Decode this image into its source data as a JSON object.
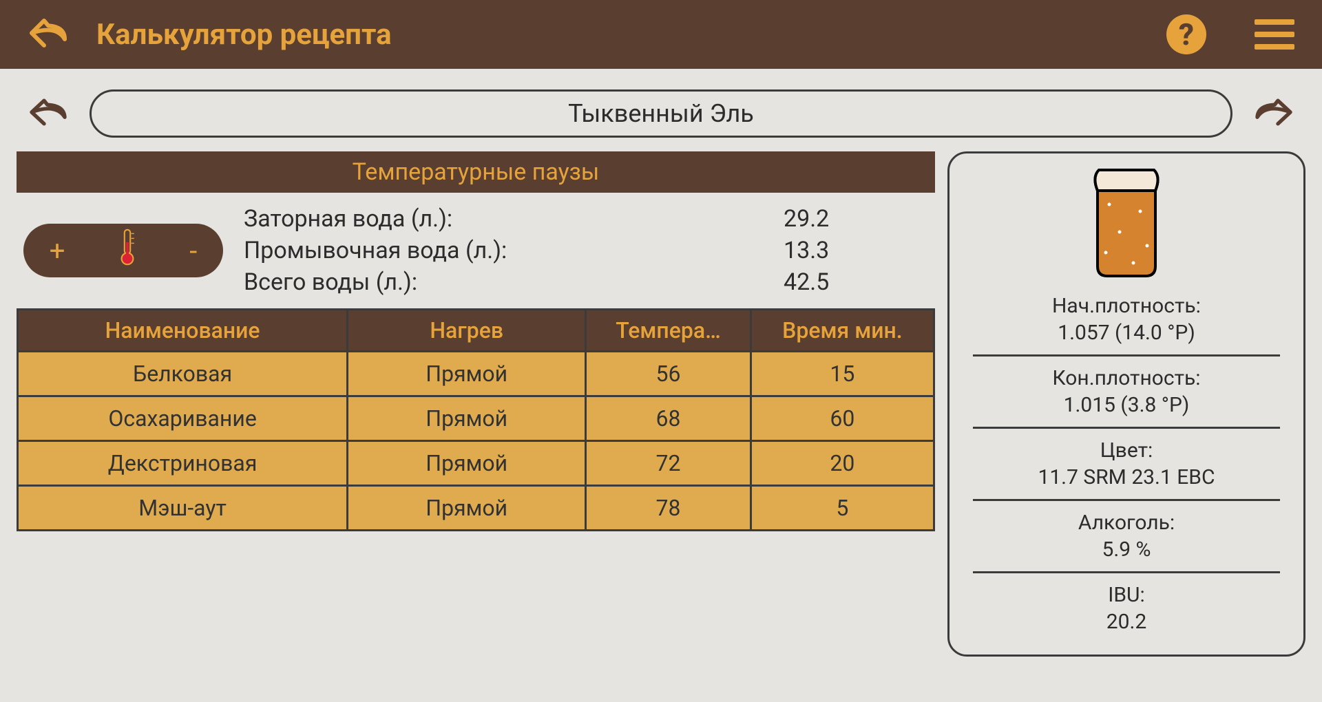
{
  "colors": {
    "header_bg": "#5a3f30",
    "accent": "#e6a33c",
    "page_bg": "#e5e4e0",
    "row_bg": "#e0aa4f",
    "border": "#3b3b3b",
    "text": "#2c2c2c",
    "beer_fill": "#d6832f"
  },
  "header": {
    "title": "Калькулятор рецепта",
    "help_label": "?"
  },
  "recipe": {
    "name": "Тыквенный Эль"
  },
  "section_title": "Температурные паузы",
  "temp_control": {
    "plus": "+",
    "minus": "-"
  },
  "water": {
    "rows": [
      {
        "label": "Заторная вода (л.):",
        "value": "29.2"
      },
      {
        "label": "Промывочная вода (л.):",
        "value": "13.3"
      },
      {
        "label": "Всего воды (л.):",
        "value": "42.5"
      }
    ]
  },
  "table": {
    "columns": [
      "Наименование",
      "Нагрев",
      "Темпера…",
      "Время мин."
    ],
    "col_widths": [
      "36%",
      "26%",
      "18%",
      "20%"
    ],
    "rows": [
      [
        "Белковая",
        "Прямой",
        "56",
        "15"
      ],
      [
        "Осахаривание",
        "Прямой",
        "68",
        "60"
      ],
      [
        "Декстриновая",
        "Прямой",
        "72",
        "20"
      ],
      [
        "Мэш-аут",
        "Прямой",
        "78",
        "5"
      ]
    ]
  },
  "stats": [
    {
      "label": "Нач.плотность:",
      "value": "1.057 (14.0 °P)"
    },
    {
      "label": "Кон.плотность:",
      "value": "1.015 (3.8 °P)"
    },
    {
      "label": "Цвет:",
      "value": "11.7 SRM 23.1 EBC"
    },
    {
      "label": "Алкоголь:",
      "value": "5.9 %"
    },
    {
      "label": "IBU:",
      "value": "20.2"
    }
  ]
}
